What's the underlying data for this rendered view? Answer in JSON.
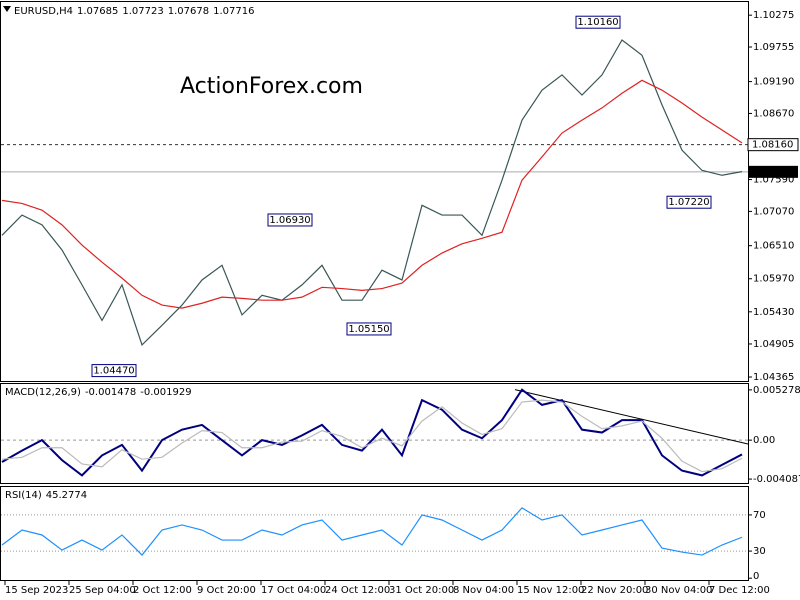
{
  "chart_data": [
    {
      "type": "line",
      "symbol": "EURUSD,H4",
      "ohlc": [
        1.07685,
        1.07723,
        1.07678,
        1.07716
      ],
      "watermark": "ActionForex.com",
      "ylim": [
        1.043,
        1.1049
      ],
      "yticks": [
        1.10275,
        1.09755,
        {
          "value": 1.0919,
          "label": "1.09190"
        },
        {
          "value": 1.0867,
          "label": "1.08670"
        },
        {
          "value": 1.0759,
          "label": "1.07590"
        },
        {
          "value": 1.0707,
          "label": "1.07070"
        },
        {
          "value": 1.0651,
          "label": "1.06510"
        },
        {
          "value": 1.0597,
          "label": "1.05970"
        },
        {
          "value": 1.0543,
          "label": "1.05430"
        },
        1.04905,
        1.04365
      ],
      "level": {
        "value": 1.0816,
        "label": "1.08160"
      },
      "last_price": 1.07716,
      "annotations": [
        {
          "value": 1.1016,
          "label": "1.10160"
        },
        {
          "value": 1.0693,
          "label": "1.06930"
        },
        {
          "value": 1.0515,
          "label": "1.05150"
        },
        {
          "value": 1.0447,
          "label": "1.04470"
        },
        {
          "value": 1.0722,
          "label": "1.07220"
        }
      ],
      "series": [
        {
          "color": "#3a5656",
          "values": [
            1.0668,
            1.0701,
            1.0685,
            1.0644,
            1.0587,
            1.0529,
            1.0587,
            1.0489,
            1.0521,
            1.0554,
            1.0595,
            1.0619,
            1.0538,
            1.057,
            1.0562,
            1.0587,
            1.0619,
            1.0562,
            1.0562,
            1.0611,
            1.0595,
            1.0717,
            1.0701,
            1.0701,
            1.0668,
            1.0758,
            1.0856,
            1.0905,
            1.093,
            1.0897,
            1.093,
            1.0987,
            1.0962,
            1.0881,
            1.0807,
            1.0774,
            1.0766,
            1.0772
          ]
        },
        {
          "color": "#dd2222",
          "values": [
            1.0725,
            1.072,
            1.0709,
            1.0685,
            1.0652,
            1.0624,
            1.0598,
            1.057,
            1.0554,
            1.0549,
            1.0557,
            1.0567,
            1.0565,
            1.0562,
            1.0562,
            1.0567,
            1.0583,
            1.0581,
            1.0578,
            1.0581,
            1.059,
            1.0619,
            1.0639,
            1.0654,
            1.0663,
            1.0673,
            1.0758,
            1.0796,
            1.0835,
            1.0856,
            1.0876,
            1.09,
            1.0921,
            1.0905,
            1.0884,
            1.0861,
            1.084,
            1.0819
          ]
        }
      ]
    },
    {
      "type": "line",
      "title": "MACD(12,26,9)",
      "readings": [
        -0.001478,
        -0.001929
      ],
      "ylim": [
        -0.0045,
        0.006
      ],
      "yticks": [
        0.005278,
        {
          "value": 0,
          "label": "0.00"
        },
        -0.004087
      ],
      "trendline": {
        "color": "#000000",
        "values": [
          0.0053,
          -0.0004
        ]
      },
      "series": [
        {
          "color": "#000080",
          "values": [
            -0.0023,
            -0.0011,
            0,
            -0.0021,
            -0.0037,
            -0.0016,
            -0.0005,
            -0.0032,
            0,
            0.0011,
            0.0016,
            0,
            -0.0016,
            0,
            -0.0005,
            0.0005,
            0.0016,
            -0.0005,
            -0.0011,
            0.0011,
            -0.0016,
            0.0042,
            0.0032,
            0.0011,
            0.0002,
            0.0021,
            0.0053,
            0.0037,
            0.0042,
            0.0011,
            0.0008,
            0.0021,
            0.0021,
            -0.0016,
            -0.0032,
            -0.0037,
            -0.0026,
            -0.0015
          ]
        },
        {
          "color": "#bbbbbb",
          "values": [
            -0.002,
            -0.0018,
            -0.0008,
            -0.0008,
            -0.0025,
            -0.0028,
            -0.001,
            -0.002,
            -0.0018,
            -0.0003,
            0.001,
            0.0008,
            -0.0008,
            -0.0008,
            -0.0002,
            -0.0001,
            0.001,
            0.0004,
            -0.0008,
            0.0002,
            -0.0006,
            0.002,
            0.0035,
            0.0018,
            0.0006,
            0.0012,
            0.004,
            0.0042,
            0.004,
            0.0025,
            0.0012,
            0.0015,
            0.002,
            0.0002,
            -0.0022,
            -0.0033,
            -0.003,
            -0.0019
          ]
        }
      ]
    },
    {
      "type": "line",
      "title": "RSI(14)",
      "readings": [
        45.2774
      ],
      "ylim": [
        -2,
        102
      ],
      "yticks": [
        70,
        30,
        0
      ],
      "levels": [
        70,
        30
      ],
      "x_labels": [
        "15 Sep 2023",
        "25 Sep 04:00",
        "2 Oct 12:00",
        "9 Oct 20:00",
        "17 Oct 04:00",
        "24 Oct 12:00",
        "31 Oct 20:00",
        "8 Nov 04:00",
        "15 Nov 12:00",
        "22 Nov 20:00",
        "30 Nov 04:00",
        "7 Dec 12:00"
      ],
      "series": [
        {
          "color": "#1e90ff",
          "values": [
            36.7,
            53.3,
            47.8,
            31.1,
            42.2,
            31.1,
            47.8,
            25.6,
            53.3,
            58.9,
            53.3,
            42.2,
            42.2,
            53.3,
            47.8,
            58.9,
            64.4,
            42.2,
            47.8,
            53.3,
            36.7,
            70,
            64.4,
            53.3,
            42.2,
            53.3,
            77.8,
            64.4,
            70,
            47.8,
            53.3,
            58.9,
            64.4,
            33.3,
            28.9,
            25.6,
            36.7,
            45.3
          ]
        }
      ]
    }
  ]
}
